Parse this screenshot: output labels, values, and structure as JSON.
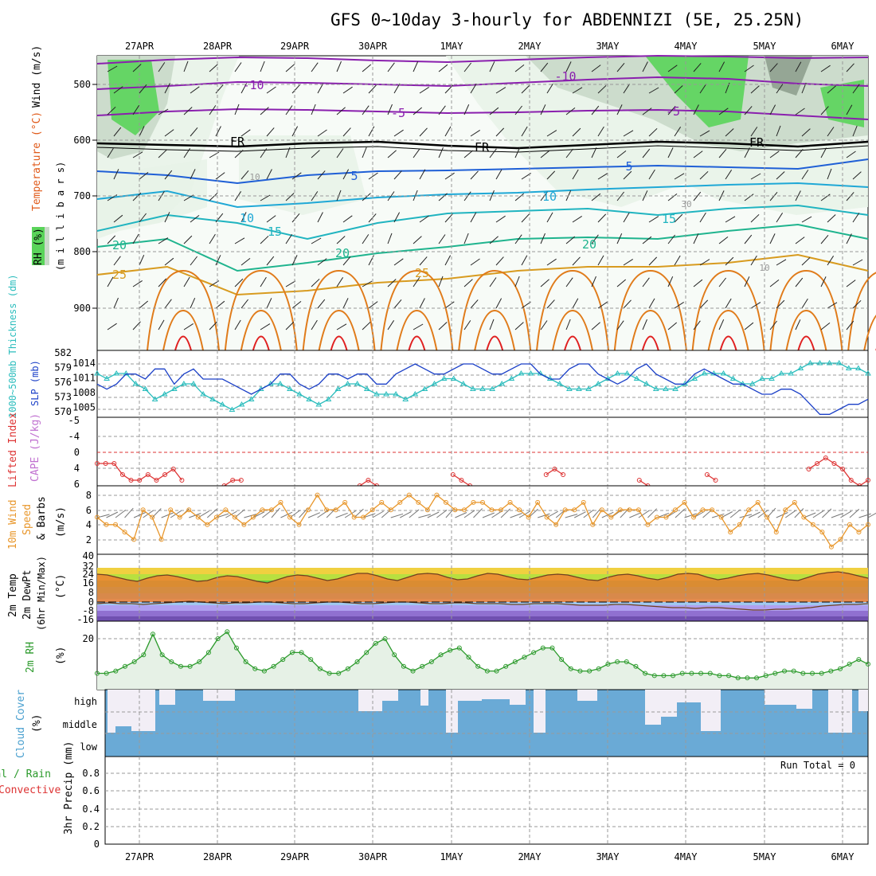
{
  "title": "GFS 0~10day 3-hourly for ABDENNIZI (5E, 25.25N)",
  "dates": [
    "27APR",
    "28APR",
    "29APR",
    "30APR",
    "1MAY",
    "2MAY",
    "3MAY",
    "4MAY",
    "5MAY",
    "6MAY"
  ],
  "colors": {
    "rh_light": "#e8f3e8",
    "rh_mid": "#c9d9c9",
    "rh_dark": "#8fa08f",
    "rh_bright": "#5ad45a",
    "temp_neg": "#8a1fae",
    "temp_fr": "#000000",
    "temp_5": "#1f5fd6",
    "temp_10": "#1fa8d6",
    "temp_15": "#20b4c0",
    "temp_20": "#1fb48e",
    "temp_25": "#d89b1f",
    "temp_30": "#e07b1a",
    "temp_35": "#e02020",
    "slp": "#1a3fc7",
    "thickness": "#2bbdbd",
    "lifted": "#dd3333",
    "wind": "#e8962a",
    "rh2m": "#2b9a2b",
    "cloud": "#6aaad6",
    "cloud_clear": "#f2eef6"
  },
  "panels": {
    "upper": {
      "ylabels": [
        "Wind (m/s)",
        "Temperature (°C)",
        "RH (%)"
      ],
      "unit": "(m i l l i b a r s)",
      "pressure_ticks": [
        500,
        600,
        700,
        800,
        900
      ],
      "contour_labels": [
        "-10",
        "-10",
        "-5",
        "-5",
        "FR",
        "FR",
        "FR",
        "5",
        "5",
        "10",
        "10",
        "15",
        "15",
        "20",
        "20",
        "20",
        "25",
        "25",
        "10",
        "30",
        "10"
      ]
    },
    "slp": {
      "label_slp": "SLP (mb)",
      "label_thick": "1000~500mb Thickness (dm)",
      "thick_ticks": [
        "582",
        "579",
        "576",
        "573",
        "570"
      ],
      "slp_ticks": [
        "1014",
        "1011",
        "1008",
        "1005"
      ]
    },
    "cape": {
      "label_li": "Lifted Index",
      "label_cape": "CAPE (J/kg)",
      "ticks": [
        "-5",
        "-4",
        "0",
        "4",
        "6"
      ]
    },
    "wind10": {
      "label1": "10m Wind",
      "label2": "Speed",
      "label3": "& Barbs",
      "unit": "(m/s)",
      "ticks": [
        "8",
        "6",
        "4",
        "2"
      ]
    },
    "temp2m": {
      "label1": "2m Temp",
      "label2": "2m DewPt",
      "label3": "(6hr Min/Max)",
      "unit": "(°C)",
      "ticks": [
        "40",
        "32",
        "24",
        "16",
        "8",
        "0",
        "-8",
        "-16"
      ]
    },
    "rh2m": {
      "label": "2m RH",
      "unit": "(%)",
      "ticks": [
        "20"
      ]
    },
    "cloud": {
      "label": "Cloud Cover",
      "unit": "(%)",
      "ticks": [
        "high",
        "middle",
        "low"
      ]
    },
    "precip": {
      "label1": "Total / Rain",
      "label2": "Convective",
      "label3": "3hr Precip (mm)",
      "ticks": [
        "0.8",
        "0.6",
        "0.4",
        "0.2",
        "0"
      ],
      "run_total": "Run Total = 0"
    }
  },
  "chart_data": [
    {
      "type": "line",
      "panel": "slp_thickness",
      "x_unit": "3-hour steps from 27APR 00Z",
      "series": [
        {
          "name": "SLP (mb)",
          "values": [
            1010,
            1009,
            1010,
            1012,
            1012,
            1011,
            1013,
            1013,
            1010,
            1012,
            1013,
            1011,
            1011,
            1011,
            1010,
            1009,
            1008,
            1009,
            1010,
            1012,
            1012,
            1010,
            1009,
            1010,
            1012,
            1012,
            1011,
            1012,
            1012,
            1010,
            1010,
            1012,
            1013,
            1014,
            1013,
            1012,
            1012,
            1013,
            1014,
            1014,
            1013,
            1012,
            1012,
            1013,
            1014,
            1014,
            1012,
            1011,
            1011,
            1013,
            1014,
            1014,
            1012,
            1011,
            1010,
            1011,
            1013,
            1014,
            1012,
            1011,
            1010,
            1010,
            1012,
            1013,
            1012,
            1011,
            1010,
            1010,
            1009,
            1008,
            1008,
            1009,
            1009,
            1008,
            1006,
            1004,
            1004,
            1005,
            1006,
            1006,
            1007
          ]
        },
        {
          "name": "1000~500mb Thickness (dm)",
          "values": [
            578,
            577,
            578,
            578,
            576,
            575,
            573,
            574,
            575,
            576,
            576,
            574,
            573,
            572,
            571,
            572,
            573,
            575,
            576,
            576,
            575,
            574,
            573,
            572,
            573,
            575,
            576,
            576,
            575,
            574,
            574,
            574,
            573,
            574,
            575,
            576,
            577,
            577,
            576,
            575,
            575,
            575,
            576,
            577,
            578,
            578,
            578,
            577,
            576,
            575,
            575,
            575,
            576,
            577,
            578,
            578,
            577,
            576,
            575,
            575,
            575,
            576,
            577,
            578,
            578,
            578,
            577,
            576,
            576,
            577,
            577,
            578,
            578,
            579,
            580,
            580,
            580,
            580,
            579,
            579,
            578
          ]
        }
      ]
    },
    {
      "type": "line",
      "panel": "lifted_index",
      "series": [
        {
          "name": "Lifted Index",
          "values": [
            2,
            2,
            2,
            4,
            5,
            5,
            4,
            5,
            4,
            3,
            5,
            null,
            null,
            null,
            null,
            6,
            5,
            5,
            null,
            null,
            null,
            null,
            null,
            null,
            null,
            null,
            null,
            null,
            null,
            null,
            null,
            6,
            5,
            6,
            null,
            null,
            null,
            null,
            null,
            null,
            null,
            null,
            4,
            5,
            6,
            null,
            null,
            null,
            null,
            null,
            null,
            null,
            null,
            4,
            3,
            4,
            null,
            null,
            null,
            null,
            null,
            null,
            null,
            null,
            5,
            6,
            null,
            null,
            null,
            null,
            null,
            null,
            4,
            5,
            null,
            null,
            null,
            null,
            null,
            null,
            null,
            null,
            null,
            null,
            3,
            2,
            1,
            2,
            3,
            5,
            6,
            5
          ]
        }
      ]
    },
    {
      "type": "line",
      "panel": "wind10m",
      "series": [
        {
          "name": "10m Wind Speed (m/s)",
          "values": [
            5,
            4,
            4,
            3,
            2,
            6,
            5,
            2,
            6,
            5,
            6,
            5,
            4,
            5,
            6,
            5,
            4,
            5,
            6,
            6,
            7,
            5,
            4,
            6,
            8,
            6,
            6,
            7,
            5,
            5,
            6,
            7,
            6,
            7,
            8,
            7,
            6,
            8,
            7,
            6,
            6,
            7,
            7,
            6,
            6,
            7,
            6,
            5,
            7,
            5,
            4,
            6,
            6,
            7,
            4,
            6,
            5,
            6,
            6,
            6,
            4,
            5,
            5,
            6,
            7,
            5,
            6,
            6,
            5,
            3,
            4,
            6,
            7,
            5,
            3,
            6,
            7,
            5,
            4,
            3,
            1,
            2,
            4,
            3,
            4
          ]
        }
      ]
    },
    {
      "type": "line",
      "panel": "temp2m",
      "series": [
        {
          "name": "2m Temp (°C)",
          "values": [
            35,
            34,
            31,
            28,
            26,
            30,
            33,
            34,
            32,
            29,
            26,
            27,
            31,
            33,
            32,
            29,
            26,
            24,
            28,
            32,
            34,
            33,
            30,
            27,
            29,
            33,
            36,
            36,
            33,
            29,
            27,
            31,
            35,
            36,
            35,
            31,
            28,
            29,
            33,
            36,
            35,
            32,
            29,
            28,
            31,
            34,
            35,
            34,
            31,
            28,
            27,
            31,
            34,
            35,
            33,
            30,
            28,
            31,
            35,
            36,
            35,
            31,
            28,
            30,
            33,
            35,
            36,
            34,
            31,
            28,
            27,
            31,
            35,
            37,
            38,
            36,
            33,
            30
          ]
        },
        {
          "name": "2m DewPt (°C)",
          "values": [
            -2,
            -1,
            -2,
            -2,
            -3,
            -2,
            -1,
            0,
            1,
            0,
            -1,
            -2,
            -1,
            -1,
            0,
            0,
            -1,
            -2,
            -2,
            -1,
            0,
            0,
            -1,
            -2,
            -2,
            -1,
            0,
            0,
            -1,
            -2,
            -2,
            -1,
            -1,
            -2,
            -2,
            -2,
            -3,
            -3,
            -2,
            -2,
            -2,
            -3,
            -4,
            -4,
            -4,
            -3,
            -3,
            -4,
            -5,
            -6,
            -7,
            -7,
            -8,
            -7,
            -7,
            -8,
            -9,
            -10,
            -10,
            -9,
            -9,
            -8,
            -7,
            -5,
            -4,
            -3,
            -3,
            -2
          ]
        }
      ]
    },
    {
      "type": "area",
      "panel": "rh2m",
      "series": [
        {
          "name": "2m RH (%)",
          "values": [
            5,
            5,
            6,
            8,
            10,
            13,
            22,
            13,
            10,
            8,
            8,
            10,
            14,
            20,
            23,
            16,
            10,
            7,
            6,
            8,
            11,
            14,
            14,
            11,
            7,
            5,
            5,
            7,
            10,
            14,
            18,
            20,
            13,
            8,
            6,
            8,
            10,
            13,
            15,
            16,
            12,
            8,
            6,
            6,
            8,
            10,
            12,
            14,
            16,
            16,
            11,
            7,
            6,
            6,
            7,
            9,
            10,
            10,
            8,
            5,
            4,
            4,
            4,
            5,
            5,
            5,
            5,
            4,
            4,
            3,
            3,
            3,
            4,
            5,
            6,
            6,
            5,
            5,
            5,
            6,
            7,
            9,
            11,
            9
          ]
        }
      ],
      "ylim": [
        0,
        30
      ]
    },
    {
      "type": "table",
      "panel": "cloud_cover",
      "levels": [
        "high",
        "middle",
        "low"
      ],
      "note": "low cloud always full blue; high and middle mostly cloudy with clear intervals"
    },
    {
      "type": "bar",
      "panel": "precip",
      "series": [
        {
          "name": "3hr Precip (mm)",
          "values": []
        }
      ],
      "ylim": [
        0,
        1
      ]
    }
  ]
}
